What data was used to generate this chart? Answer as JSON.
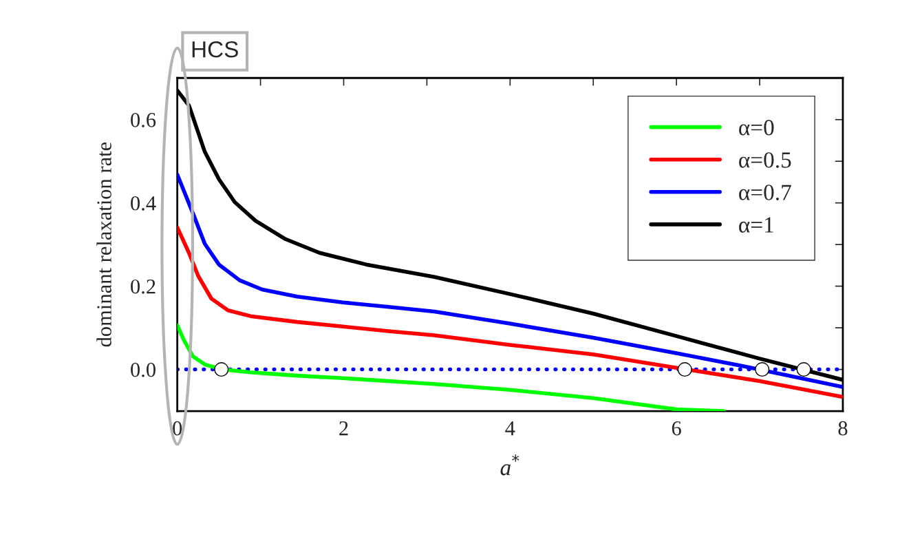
{
  "chart_data": {
    "type": "line",
    "xlabel": "a$^{*}$",
    "ylabel": "dominant relaxation rate",
    "annotations": [
      "HCS"
    ],
    "xlim": [
      0,
      8
    ],
    "ylim": [
      -0.1,
      0.7
    ],
    "xticks": [
      0,
      {
        "value": 1,
        "label": null
      },
      2,
      {
        "value": 3,
        "label": null
      },
      4,
      {
        "value": 5,
        "label": null
      },
      6,
      {
        "value": 7,
        "label": null
      },
      8
    ],
    "yticks": [
      {
        "value": -0.1,
        "label": null
      },
      {
        "value": 0.0,
        "label": "0.0"
      },
      {
        "value": 0.1,
        "label": null
      },
      0.2,
      {
        "value": 0.3,
        "label": null
      },
      0.4,
      {
        "value": 0.5,
        "label": null
      },
      0.6,
      {
        "value": 0.7,
        "label": null
      }
    ],
    "legend": "top right",
    "grid": false,
    "marker": "none",
    "line_style": "solid",
    "ref_lines": [
      {
        "axis": "y",
        "value": 0,
        "color": "#0000ff",
        "line_style": "dotted"
      }
    ],
    "series": [
      {
        "name": "α=0",
        "color": "#00ff00",
        "x": [
          0,
          0.08,
          0.19,
          0.33,
          0.54,
          0.88,
          1.44,
          1.99,
          3.09,
          4,
          5,
          6,
          6.57
        ],
        "values": [
          0.106,
          0.07,
          0.031,
          0.012,
          0,
          -0.007,
          -0.015,
          -0.021,
          -0.035,
          -0.049,
          -0.069,
          -0.096,
          -0.1
        ]
      },
      {
        "name": "α=0.5",
        "color": "#ff0000",
        "x": [
          0,
          0.14,
          0.25,
          0.41,
          0.61,
          0.88,
          1.44,
          1.99,
          2.54,
          3.09,
          4,
          5,
          6,
          7,
          8
        ],
        "values": [
          0.341,
          0.28,
          0.225,
          0.17,
          0.142,
          0.128,
          0.114,
          0.103,
          0.092,
          0.082,
          0.059,
          0.036,
          0.004,
          -0.028,
          -0.066
        ]
      },
      {
        "name": "α=0.7",
        "color": "#0000ff",
        "x": [
          0,
          0.19,
          0.33,
          0.5,
          0.75,
          1.02,
          1.44,
          1.99,
          2.54,
          3.09,
          4,
          5,
          6,
          6.8,
          8
        ],
        "values": [
          0.468,
          0.374,
          0.302,
          0.252,
          0.214,
          0.192,
          0.175,
          0.161,
          0.15,
          0.139,
          0.11,
          0.076,
          0.039,
          0.008,
          -0.042
        ]
      },
      {
        "name": "α=1",
        "color": "#000000",
        "x": [
          0,
          0.14,
          0.33,
          0.5,
          0.69,
          0.94,
          1.3,
          1.71,
          2.27,
          3.09,
          4,
          5,
          6,
          7,
          8
        ],
        "values": [
          0.67,
          0.634,
          0.523,
          0.457,
          0.402,
          0.357,
          0.313,
          0.28,
          0.252,
          0.222,
          0.181,
          0.134,
          0.08,
          0.026,
          -0.025
        ]
      },
      {
        "type": "scatter",
        "marker": "circle",
        "color": "#ffffff",
        "x": [
          0.53,
          6.1,
          7.03,
          7.53
        ],
        "values": [
          0,
          0,
          0,
          0
        ]
      }
    ]
  }
}
